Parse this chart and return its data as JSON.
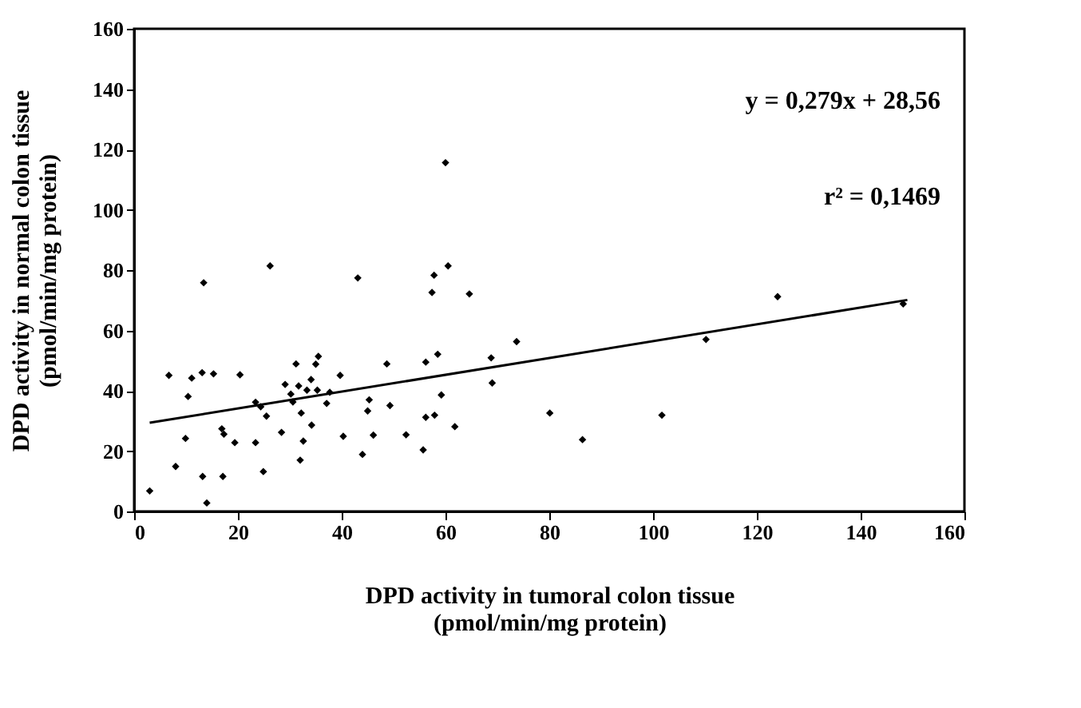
{
  "chart_data": {
    "type": "scatter",
    "xlabel": "DPD activity in tumoral colon tissue\n(pmol/min/mg protein)",
    "ylabel": "DPD activity in normal colon tissue\n(pmol/min/mg protein)",
    "xlim": [
      0,
      160
    ],
    "xticks": [
      0,
      20,
      40,
      60,
      80,
      100,
      120,
      140,
      160
    ],
    "ylim": [
      0,
      160
    ],
    "yticks": [
      0,
      20,
      40,
      60,
      80,
      100,
      120,
      140,
      160
    ],
    "grid": false,
    "annotations": [
      "y = 0,279x + 28,56",
      "r² = 0,1469"
    ],
    "series": [
      {
        "type": "scatter",
        "color": "#000000",
        "marker": "diamond",
        "x": [
          3.0,
          8.0,
          6.7,
          9.9,
          10.4,
          11.1,
          13.1,
          13.4,
          13.2,
          14.0,
          15.3,
          16.9,
          17.3,
          17.1,
          19.4,
          20.4,
          23.4,
          23.4,
          24.4,
          24.9,
          25.5,
          26.2,
          28.4,
          29.1,
          30.2,
          30.6,
          31.2,
          31.7,
          32.2,
          32.0,
          32.6,
          33.3,
          34.1,
          34.2,
          35.0,
          35.5,
          35.3,
          37.1,
          37.7,
          39.7,
          40.3,
          43.1,
          44.0,
          45.3,
          45.0,
          46.1,
          48.7,
          49.3,
          52.4,
          55.7,
          56.2,
          57.9,
          56.2,
          58.5,
          57.4,
          57.8,
          60.5,
          64.6,
          59.2,
          61.8,
          68.8,
          69.0,
          73.7,
          80.1,
          86.4,
          101.7,
          110.2,
          124.0,
          148.2,
          60.0
        ],
        "values": [
          6.8,
          14.9,
          45.1,
          24.2,
          38.1,
          44.2,
          46.0,
          75.8,
          11.6,
          2.8,
          45.6,
          27.4,
          25.6,
          11.6,
          22.8,
          45.3,
          22.8,
          36.2,
          34.7,
          13.2,
          31.6,
          81.4,
          26.2,
          42.1,
          38.9,
          36.3,
          48.9,
          41.6,
          32.6,
          17.0,
          23.3,
          40.2,
          43.7,
          28.6,
          48.8,
          51.4,
          40.2,
          35.8,
          39.5,
          45.1,
          24.9,
          77.4,
          18.9,
          37.0,
          33.3,
          25.3,
          48.9,
          35.1,
          25.4,
          20.4,
          31.2,
          31.9,
          49.5,
          52.1,
          72.6,
          78.3,
          81.4,
          72.1,
          38.6,
          28.1,
          50.9,
          42.6,
          56.3,
          32.6,
          23.8,
          31.9,
          57.0,
          71.2,
          68.8,
          115.6
        ]
      },
      {
        "type": "line",
        "color": "#000000",
        "line_style": "solid",
        "x": [
          3,
          149
        ],
        "values": [
          29.4,
          70.1
        ]
      }
    ]
  }
}
